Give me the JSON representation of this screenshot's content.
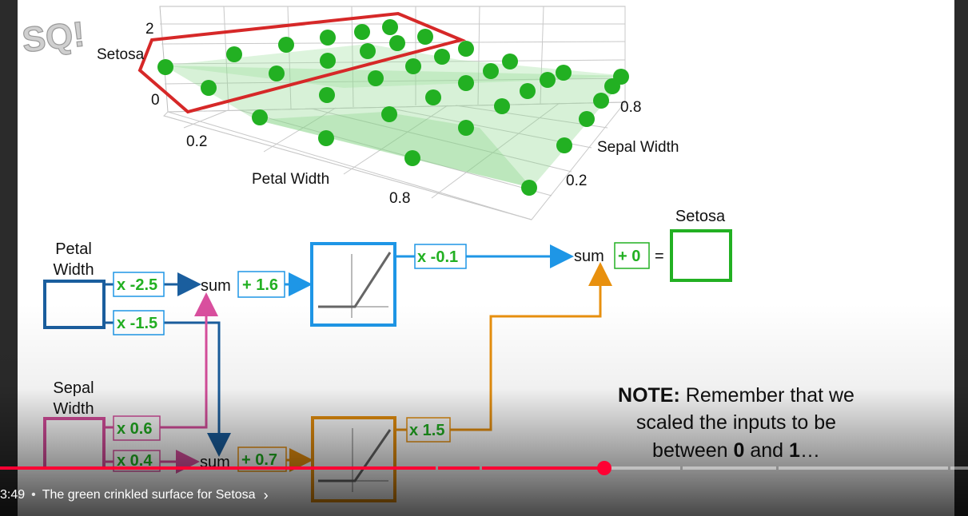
{
  "plot": {
    "axis_labels": {
      "petal_width": "Petal Width",
      "sepal_width": "Sepal Width",
      "setosa": "Setosa"
    },
    "ticks": {
      "z_top": "2",
      "z_bottom": "0",
      "petal_a": "0.2",
      "petal_b": "0.8",
      "sepal_a": "0.8",
      "sepal_b": "0.2"
    }
  },
  "network": {
    "petal_input_label": "Petal\nWidth",
    "sepal_input_label": "Sepal\nWidth",
    "w_petal_top": "x -2.5",
    "w_petal_bottom": "x -1.5",
    "w_sepal_top": "x 0.6",
    "w_sepal_bottom": "x 0.4",
    "sum_label": "sum",
    "bias_top": "+ 1.6",
    "bias_bottom": "+ 0.7",
    "w_out_top": "x -0.1",
    "w_out_bottom": "x 1.5",
    "final_bias": "+ 0",
    "equals": "=",
    "output_label": "Setosa"
  },
  "note": {
    "bold_prefix": "NOTE:",
    "text1": " Remember that we",
    "line2": "scaled the inputs to be",
    "line3_a": "between ",
    "line3_b": "0",
    "line3_c": " and ",
    "line3_d": "1",
    "line3_e": "…"
  },
  "player": {
    "timestamp": "3:49",
    "separator": "•",
    "chapter_title": "The green crinkled surface for Setosa",
    "chevron": "›",
    "progress": 0.62
  },
  "colors": {
    "green": "#22b022",
    "blue": "#1e96e6",
    "dark_blue": "#1a5e9e",
    "pink": "#d94f9e",
    "orange": "#e8900e",
    "red": "#d62828",
    "progress_red": "#ff0033"
  }
}
